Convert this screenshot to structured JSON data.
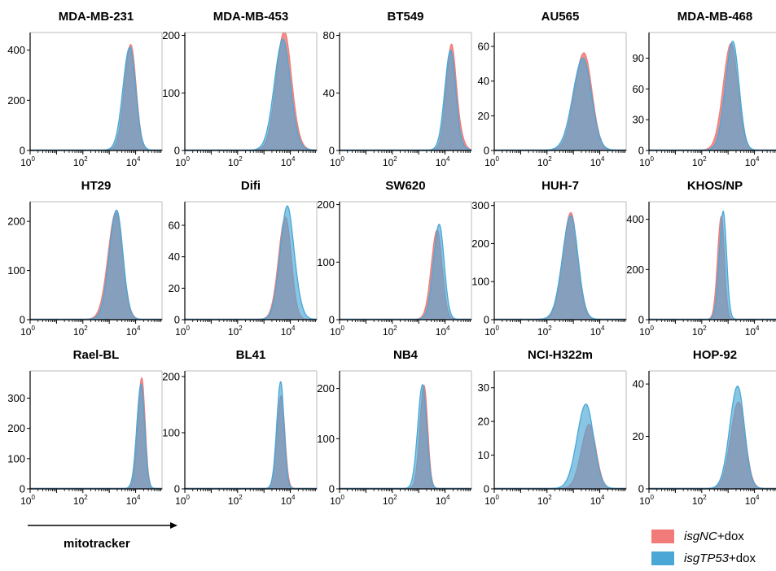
{
  "colors": {
    "nc": "#f07b78",
    "tp53": "#4aa7d6",
    "overlap": "#7c8fa2"
  },
  "x_axis": {
    "label": "mitotracker"
  },
  "legend": [
    {
      "italic": "isgNC",
      "suffix": "+dox",
      "color": "#f07b78"
    },
    {
      "italic": "isgTP53",
      "suffix": "+dox",
      "color": "#4aa7d6"
    }
  ],
  "chart_data": [
    {
      "type": "area",
      "title": "MDA-MB-231",
      "ylim": [
        0,
        470
      ],
      "yticks": [
        0,
        200,
        400
      ],
      "xscale": "log",
      "xlim": [
        1,
        100000
      ],
      "xticks": [
        "10^0",
        "10^2",
        "10^4"
      ],
      "series": [
        {
          "name": "isgNC+dox",
          "peak_x": 6500,
          "peak_y": 420,
          "width": 0.24,
          "shoulder": 0
        },
        {
          "name": "isgTP53+dox",
          "peak_x": 6000,
          "peak_y": 410,
          "width": 0.26,
          "shoulder": 0
        }
      ]
    },
    {
      "type": "area",
      "title": "MDA-MB-453",
      "ylim": [
        0,
        205
      ],
      "yticks": [
        0,
        100,
        200
      ],
      "xscale": "log",
      "xlim": [
        1,
        100000
      ],
      "xticks": [
        "10^0",
        "10^2",
        "10^4"
      ],
      "series": [
        {
          "name": "isgNC+dox",
          "peak_x": 5500,
          "peak_y": 185,
          "width": 0.3,
          "shoulder": 0.35
        },
        {
          "name": "isgTP53+dox",
          "peak_x": 5000,
          "peak_y": 180,
          "width": 0.32,
          "shoulder": 0.2
        }
      ]
    },
    {
      "type": "area",
      "title": "BT549",
      "ylim": [
        0,
        82
      ],
      "yticks": [
        0,
        40,
        80
      ],
      "xscale": "log",
      "xlim": [
        1,
        100000
      ],
      "xticks": [
        "10^0",
        "10^2",
        "10^4"
      ],
      "series": [
        {
          "name": "isgNC+dox",
          "peak_x": 17000,
          "peak_y": 70,
          "width": 0.2,
          "shoulder": 0.3
        },
        {
          "name": "isgTP53+dox",
          "peak_x": 16000,
          "peak_y": 68,
          "width": 0.22,
          "shoulder": 0.1
        }
      ]
    },
    {
      "type": "area",
      "title": "AU565",
      "ylim": [
        0,
        68
      ],
      "yticks": [
        0,
        20,
        40,
        60
      ],
      "xscale": "log",
      "xlim": [
        1,
        100000
      ],
      "xticks": [
        "10^0",
        "10^2",
        "10^4"
      ],
      "series": [
        {
          "name": "isgNC+dox",
          "peak_x": 2500,
          "peak_y": 56,
          "width": 0.36,
          "shoulder": 0
        },
        {
          "name": "isgTP53+dox",
          "peak_x": 2300,
          "peak_y": 53,
          "width": 0.38,
          "shoulder": 0
        }
      ]
    },
    {
      "type": "area",
      "title": "MDA-MB-468",
      "ylim": [
        0,
        115
      ],
      "yticks": [
        0,
        30,
        60,
        90
      ],
      "xscale": "log",
      "xlim": [
        1,
        100000
      ],
      "xticks": [
        "10^0",
        "10^2",
        "10^4"
      ],
      "series": [
        {
          "name": "isgNC+dox",
          "peak_x": 1300,
          "peak_y": 104,
          "width": 0.3,
          "shoulder": 0
        },
        {
          "name": "isgTP53+dox",
          "peak_x": 1500,
          "peak_y": 106,
          "width": 0.28,
          "shoulder": 0
        }
      ]
    },
    {
      "type": "area",
      "title": "HT29",
      "ylim": [
        0,
        240
      ],
      "yticks": [
        0,
        100,
        200
      ],
      "xscale": "log",
      "xlim": [
        1,
        100000
      ],
      "xticks": [
        "10^0",
        "10^2",
        "10^4"
      ],
      "series": [
        {
          "name": "isgNC+dox",
          "peak_x": 1800,
          "peak_y": 218,
          "width": 0.3,
          "shoulder": 0
        },
        {
          "name": "isgTP53+dox",
          "peak_x": 1900,
          "peak_y": 222,
          "width": 0.28,
          "shoulder": 0
        }
      ]
    },
    {
      "type": "area",
      "title": "Difi",
      "ylim": [
        0,
        75
      ],
      "yticks": [
        0,
        20,
        40,
        60
      ],
      "xscale": "log",
      "xlim": [
        1,
        100000
      ],
      "xticks": [
        "10^0",
        "10^2",
        "10^4"
      ],
      "series": [
        {
          "name": "isgNC+dox",
          "peak_x": 6500,
          "peak_y": 65,
          "width": 0.26,
          "shoulder": 0
        },
        {
          "name": "isgTP53+dox",
          "peak_x": 7000,
          "peak_y": 62,
          "width": 0.26,
          "shoulder": 0.55
        }
      ]
    },
    {
      "type": "area",
      "title": "SW620",
      "ylim": [
        0,
        205
      ],
      "yticks": [
        0,
        100,
        200
      ],
      "xscale": "log",
      "xlim": [
        1,
        100000
      ],
      "xticks": [
        "10^0",
        "10^2",
        "10^4"
      ],
      "series": [
        {
          "name": "isgNC+dox",
          "peak_x": 5000,
          "peak_y": 155,
          "width": 0.22,
          "shoulder": 0
        },
        {
          "name": "isgTP53+dox",
          "peak_x": 6000,
          "peak_y": 165,
          "width": 0.22,
          "shoulder": 0
        }
      ]
    },
    {
      "type": "area",
      "title": "HUH-7",
      "ylim": [
        0,
        310
      ],
      "yticks": [
        0,
        100,
        200,
        300
      ],
      "xscale": "log",
      "xlim": [
        1,
        100000
      ],
      "xticks": [
        "10^0",
        "10^2",
        "10^4"
      ],
      "series": [
        {
          "name": "isgNC+dox",
          "peak_x": 800,
          "peak_y": 280,
          "width": 0.3,
          "shoulder": 0
        },
        {
          "name": "isgTP53+dox",
          "peak_x": 800,
          "peak_y": 272,
          "width": 0.32,
          "shoulder": 0
        }
      ]
    },
    {
      "type": "area",
      "title": "KHOS/NP",
      "ylim": [
        0,
        470
      ],
      "yticks": [
        0,
        200,
        400
      ],
      "xscale": "log",
      "xlim": [
        1,
        100000
      ],
      "xticks": [
        "10^0",
        "10^2",
        "10^4"
      ],
      "series": [
        {
          "name": "isgNC+dox",
          "peak_x": 550,
          "peak_y": 410,
          "width": 0.14,
          "shoulder": 0
        },
        {
          "name": "isgTP53+dox",
          "peak_x": 650,
          "peak_y": 430,
          "width": 0.15,
          "shoulder": 0
        }
      ]
    },
    {
      "type": "area",
      "title": "Rael-BL",
      "ylim": [
        0,
        390
      ],
      "yticks": [
        0,
        100,
        200,
        300
      ],
      "xscale": "log",
      "xlim": [
        1,
        100000
      ],
      "xticks": [
        "10^0",
        "10^2",
        "10^4"
      ],
      "series": [
        {
          "name": "isgNC+dox",
          "peak_x": 17000,
          "peak_y": 365,
          "width": 0.15,
          "shoulder": 0
        },
        {
          "name": "isgTP53+dox",
          "peak_x": 16000,
          "peak_y": 345,
          "width": 0.16,
          "shoulder": 0
        }
      ]
    },
    {
      "type": "area",
      "title": "BL41",
      "ylim": [
        0,
        210
      ],
      "yticks": [
        0,
        100,
        200
      ],
      "xscale": "log",
      "xlim": [
        1,
        100000
      ],
      "xticks": [
        "10^0",
        "10^2",
        "10^4"
      ],
      "series": [
        {
          "name": "isgNC+dox",
          "peak_x": 4500,
          "peak_y": 165,
          "width": 0.16,
          "shoulder": 0
        },
        {
          "name": "isgTP53+dox",
          "peak_x": 4300,
          "peak_y": 190,
          "width": 0.15,
          "shoulder": 0
        }
      ]
    },
    {
      "type": "area",
      "title": "NB4",
      "ylim": [
        0,
        235
      ],
      "yticks": [
        0,
        100,
        200
      ],
      "xscale": "log",
      "xlim": [
        1,
        100000
      ],
      "xticks": [
        "10^0",
        "10^2",
        "10^4"
      ],
      "series": [
        {
          "name": "isgNC+dox",
          "peak_x": 1600,
          "peak_y": 205,
          "width": 0.16,
          "shoulder": 0
        },
        {
          "name": "isgTP53+dox",
          "peak_x": 1400,
          "peak_y": 207,
          "width": 0.18,
          "shoulder": 0
        }
      ]
    },
    {
      "type": "area",
      "title": "NCI-H322m",
      "ylim": [
        0,
        35
      ],
      "yticks": [
        0,
        10,
        20,
        30
      ],
      "xscale": "log",
      "xlim": [
        1,
        100000
      ],
      "xticks": [
        "10^0",
        "10^2",
        "10^4"
      ],
      "series": [
        {
          "name": "isgNC+dox",
          "peak_x": 4000,
          "peak_y": 19,
          "width": 0.3,
          "shoulder": 0
        },
        {
          "name": "isgTP53+dox",
          "peak_x": 3000,
          "peak_y": 25,
          "width": 0.34,
          "shoulder": 0
        }
      ]
    },
    {
      "type": "area",
      "title": "HOP-92",
      "ylim": [
        0,
        45
      ],
      "yticks": [
        0,
        20,
        40
      ],
      "xscale": "log",
      "xlim": [
        1,
        100000
      ],
      "xticks": [
        "10^0",
        "10^2",
        "10^4"
      ],
      "series": [
        {
          "name": "isgNC+dox",
          "peak_x": 2500,
          "peak_y": 33,
          "width": 0.3,
          "shoulder": 0
        },
        {
          "name": "isgTP53+dox",
          "peak_x": 2300,
          "peak_y": 39,
          "width": 0.3,
          "shoulder": 0
        }
      ]
    }
  ]
}
